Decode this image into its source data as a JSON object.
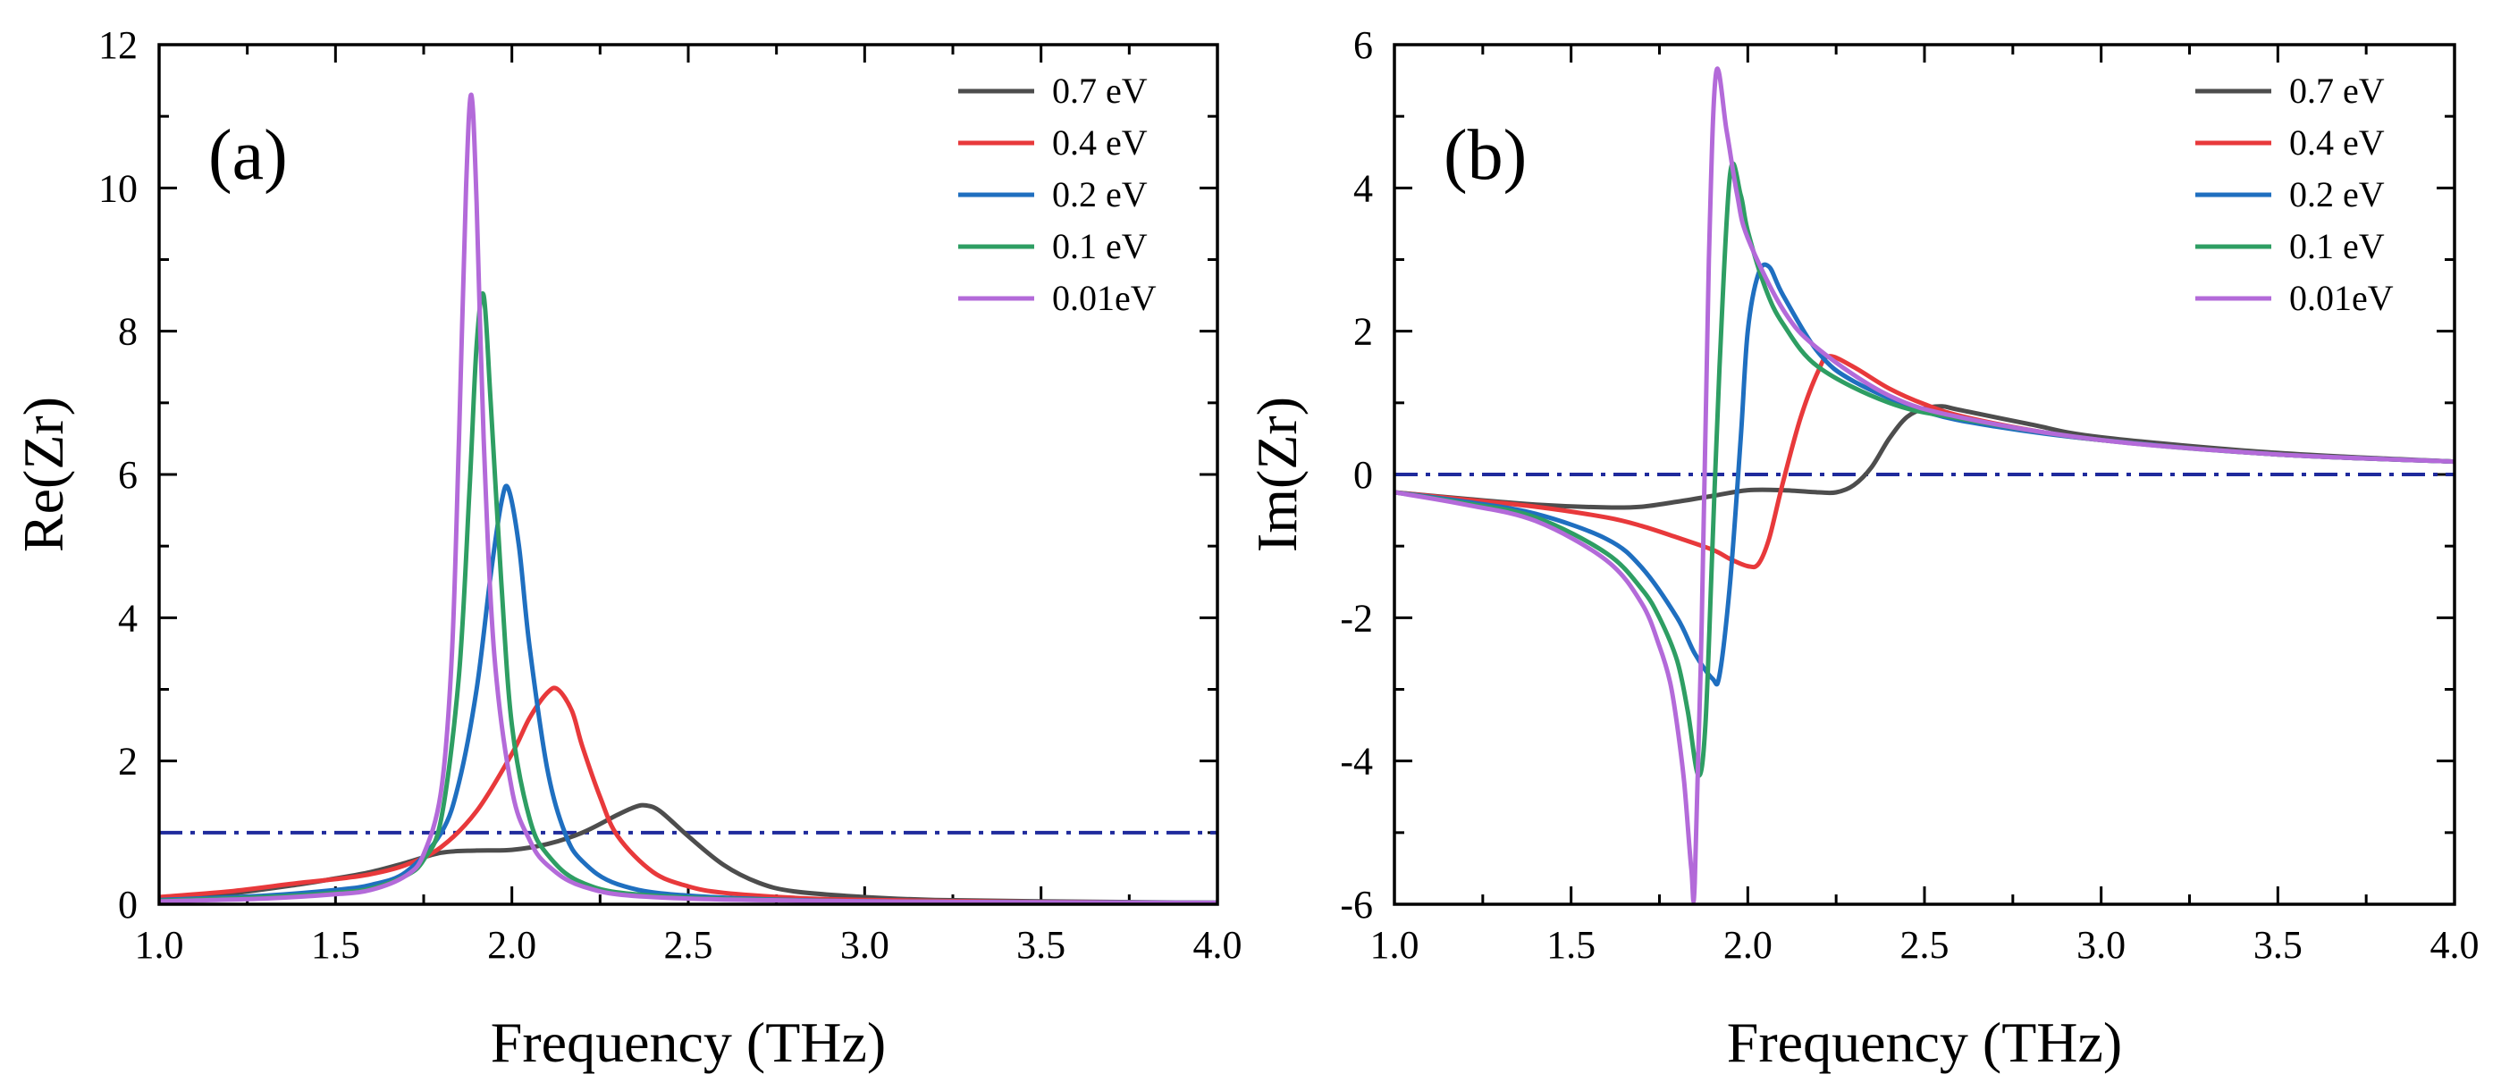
{
  "chart_data": [
    {
      "type": "line",
      "panel_label": "(a)",
      "title": "",
      "xlabel": "Frequency (THz)",
      "ylabel": "Re(Zr)",
      "xlim": [
        1.0,
        4.0
      ],
      "ylim": [
        0,
        12
      ],
      "x_ticks": [
        "1.0",
        "1.5",
        "2.0",
        "2.5",
        "3.0",
        "3.5",
        "4.0"
      ],
      "y_ticks": [
        "0",
        "2",
        "4",
        "6",
        "8",
        "10",
        "12"
      ],
      "legend_position": "top-right",
      "reference_line": {
        "y": 1.0,
        "style": "dash-dot",
        "color": "#1f2a9c"
      },
      "series": [
        {
          "name": "0.7 eV",
          "color": "#4d4d4d",
          "x": [
            1.0,
            1.2,
            1.4,
            1.5,
            1.6,
            1.7,
            1.8,
            1.9,
            2.0,
            2.1,
            2.2,
            2.3,
            2.35,
            2.38,
            2.42,
            2.5,
            2.6,
            2.7,
            2.8,
            3.0,
            3.2,
            3.5,
            4.0
          ],
          "values": [
            0.08,
            0.15,
            0.28,
            0.36,
            0.45,
            0.58,
            0.72,
            0.75,
            0.76,
            0.84,
            1.0,
            1.25,
            1.36,
            1.38,
            1.3,
            0.95,
            0.55,
            0.3,
            0.18,
            0.1,
            0.06,
            0.04,
            0.02
          ]
        },
        {
          "name": "0.4 eV",
          "color": "#e8393b",
          "x": [
            1.0,
            1.2,
            1.4,
            1.5,
            1.6,
            1.7,
            1.8,
            1.9,
            2.0,
            2.05,
            2.1,
            2.13,
            2.17,
            2.2,
            2.25,
            2.3,
            2.4,
            2.5,
            2.6,
            2.8,
            3.0,
            3.5,
            4.0
          ],
          "values": [
            0.1,
            0.18,
            0.3,
            0.35,
            0.42,
            0.55,
            0.8,
            1.3,
            2.1,
            2.6,
            2.95,
            3.0,
            2.7,
            2.2,
            1.5,
            0.95,
            0.45,
            0.25,
            0.16,
            0.09,
            0.06,
            0.03,
            0.02
          ]
        },
        {
          "name": "0.2 eV",
          "color": "#1f6fc0",
          "x": [
            1.0,
            1.3,
            1.5,
            1.6,
            1.7,
            1.8,
            1.85,
            1.9,
            1.94,
            1.97,
            1.99,
            2.02,
            2.05,
            2.1,
            2.15,
            2.2,
            2.3,
            2.5,
            3.0,
            4.0
          ],
          "values": [
            0.06,
            0.12,
            0.2,
            0.27,
            0.45,
            1.0,
            1.7,
            3.0,
            4.6,
            5.6,
            5.8,
            5.0,
            3.6,
            1.9,
            1.0,
            0.6,
            0.28,
            0.12,
            0.04,
            0.02
          ]
        },
        {
          "name": "0.1 eV",
          "color": "#2e9e63",
          "x": [
            1.0,
            1.3,
            1.5,
            1.6,
            1.7,
            1.75,
            1.8,
            1.85,
            1.88,
            1.9,
            1.92,
            1.94,
            1.97,
            2.0,
            2.05,
            2.1,
            2.2,
            2.4,
            3.0,
            4.0
          ],
          "values": [
            0.05,
            0.1,
            0.16,
            0.22,
            0.4,
            0.62,
            1.2,
            3.2,
            5.8,
            7.8,
            8.5,
            7.0,
            4.5,
            2.5,
            1.2,
            0.7,
            0.3,
            0.12,
            0.04,
            0.02
          ]
        },
        {
          "name": "0.01eV",
          "color": "#b36ad9",
          "x": [
            1.0,
            1.3,
            1.5,
            1.6,
            1.7,
            1.75,
            1.8,
            1.83,
            1.85,
            1.87,
            1.885,
            1.9,
            1.92,
            1.95,
            2.0,
            2.05,
            2.1,
            2.2,
            2.4,
            3.0,
            4.0
          ],
          "values": [
            0.04,
            0.08,
            0.14,
            0.2,
            0.4,
            0.7,
            1.6,
            3.5,
            6.5,
            10.0,
            11.3,
            9.8,
            6.5,
            3.5,
            1.6,
            0.9,
            0.55,
            0.25,
            0.1,
            0.04,
            0.02
          ]
        }
      ]
    },
    {
      "type": "line",
      "panel_label": "(b)",
      "title": "",
      "xlabel": "Frequency (THz)",
      "ylabel": "Im(Zr)",
      "xlim": [
        1.0,
        4.0
      ],
      "ylim": [
        -6,
        6
      ],
      "x_ticks": [
        "1.0",
        "1.5",
        "2.0",
        "2.5",
        "3.0",
        "3.5",
        "4.0"
      ],
      "y_ticks": [
        "-6",
        "-4",
        "-2",
        "0",
        "2",
        "4",
        "6"
      ],
      "legend_position": "top-right",
      "reference_line": {
        "y": 0,
        "style": "dash-dot",
        "color": "#1f2a9c"
      },
      "series": [
        {
          "name": "0.7 eV",
          "color": "#4d4d4d",
          "x": [
            1.0,
            1.2,
            1.4,
            1.6,
            1.7,
            1.8,
            1.9,
            2.0,
            2.1,
            2.2,
            2.25,
            2.3,
            2.35,
            2.4,
            2.45,
            2.5,
            2.55,
            2.6,
            2.8,
            3.0,
            3.5,
            4.0
          ],
          "values": [
            -0.25,
            -0.34,
            -0.42,
            -0.46,
            -0.45,
            -0.38,
            -0.3,
            -0.22,
            -0.22,
            -0.25,
            -0.25,
            -0.15,
            0.1,
            0.5,
            0.8,
            0.92,
            0.95,
            0.9,
            0.7,
            0.52,
            0.3,
            0.18
          ]
        },
        {
          "name": "0.4 eV",
          "color": "#e8393b",
          "x": [
            1.0,
            1.2,
            1.4,
            1.6,
            1.7,
            1.8,
            1.9,
            1.95,
            2.0,
            2.03,
            2.06,
            2.1,
            2.15,
            2.2,
            2.23,
            2.3,
            2.4,
            2.5,
            2.6,
            2.8,
            3.0,
            3.5,
            4.0
          ],
          "values": [
            -0.25,
            -0.35,
            -0.45,
            -0.6,
            -0.72,
            -0.88,
            -1.05,
            -1.18,
            -1.28,
            -1.25,
            -0.9,
            -0.1,
            0.8,
            1.45,
            1.65,
            1.5,
            1.2,
            0.98,
            0.82,
            0.62,
            0.48,
            0.28,
            0.18
          ]
        },
        {
          "name": "0.2 eV",
          "color": "#1f6fc0",
          "x": [
            1.0,
            1.2,
            1.4,
            1.6,
            1.7,
            1.8,
            1.85,
            1.9,
            1.92,
            1.95,
            1.98,
            2.0,
            2.03,
            2.06,
            2.1,
            2.2,
            2.3,
            2.5,
            2.7,
            3.0,
            3.5,
            4.0
          ],
          "values": [
            -0.25,
            -0.38,
            -0.55,
            -0.9,
            -1.3,
            -2.0,
            -2.5,
            -2.85,
            -2.8,
            -1.5,
            0.5,
            2.0,
            2.8,
            2.9,
            2.5,
            1.7,
            1.3,
            0.88,
            0.67,
            0.48,
            0.28,
            0.18
          ]
        },
        {
          "name": "0.1 eV",
          "color": "#2e9e63",
          "x": [
            1.0,
            1.2,
            1.4,
            1.6,
            1.7,
            1.75,
            1.8,
            1.83,
            1.86,
            1.88,
            1.9,
            1.92,
            1.95,
            1.98,
            2.0,
            2.05,
            2.1,
            2.2,
            2.4,
            2.6,
            3.0,
            3.5,
            4.0
          ],
          "values": [
            -0.25,
            -0.4,
            -0.6,
            -1.1,
            -1.6,
            -2.0,
            -2.6,
            -3.3,
            -4.2,
            -3.5,
            -1.0,
            1.5,
            4.2,
            3.9,
            3.4,
            2.6,
            2.1,
            1.5,
            1.0,
            0.78,
            0.48,
            0.28,
            0.18
          ]
        },
        {
          "name": "0.01eV",
          "color": "#b36ad9",
          "x": [
            1.0,
            1.2,
            1.4,
            1.6,
            1.7,
            1.75,
            1.78,
            1.8,
            1.82,
            1.84,
            1.85,
            1.87,
            1.89,
            1.91,
            1.94,
            1.97,
            2.0,
            2.1,
            2.2,
            2.4,
            2.6,
            3.0,
            3.5,
            4.0
          ],
          "values": [
            -0.25,
            -0.42,
            -0.65,
            -1.2,
            -1.8,
            -2.4,
            -2.9,
            -3.5,
            -4.3,
            -5.5,
            -5.7,
            -2.0,
            3.0,
            5.6,
            4.8,
            3.9,
            3.3,
            2.3,
            1.75,
            1.1,
            0.8,
            0.48,
            0.28,
            0.18
          ]
        }
      ]
    }
  ]
}
